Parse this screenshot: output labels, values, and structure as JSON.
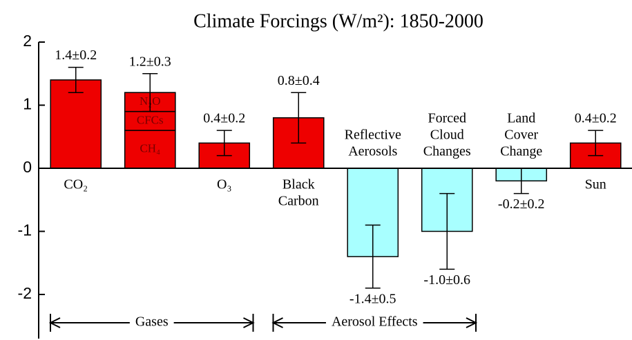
{
  "chart_data": {
    "type": "bar",
    "title": "Climate Forcings (W/m²): 1850-2000",
    "categories": [
      [
        "CO₂"
      ],
      null,
      [
        "O₃"
      ],
      [
        "Black",
        "Carbon"
      ],
      [
        "Reflective",
        "Aerosols"
      ],
      [
        "Forced",
        "Cloud",
        "Changes"
      ],
      [
        "Land",
        "Cover",
        "Change"
      ],
      [
        "Sun"
      ]
    ],
    "values": [
      1.4,
      1.2,
      0.4,
      0.8,
      -1.4,
      -1.0,
      -0.2,
      0.4
    ],
    "errors": [
      0.2,
      0.3,
      0.2,
      0.4,
      0.5,
      0.6,
      0.2,
      0.2
    ],
    "value_labels": [
      "1.4±0.2",
      "1.2±0.3",
      "0.4±0.2",
      "0.8±0.4",
      "-1.4±0.5",
      "-1.0±0.6",
      "-0.2±0.2",
      "0.4±0.2"
    ],
    "colors": [
      "#ee0000",
      "#ee0000",
      "#ee0000",
      "#ee0000",
      "#a8ffff",
      "#a8ffff",
      "#a8ffff",
      "#ee0000"
    ],
    "segments": {
      "bar": 1,
      "names": [
        "CH₄",
        "CFCs",
        "N₂O"
      ],
      "values": [
        0.6,
        0.3,
        0.3
      ]
    },
    "groups": [
      {
        "label": "Gases",
        "start": 0,
        "end": 2
      },
      {
        "label": "Aerosol Effects",
        "start": 3,
        "end": 5
      }
    ],
    "ylim": [
      -2.7,
      2
    ],
    "yticks": [
      -2,
      -1,
      0,
      1,
      2
    ]
  }
}
